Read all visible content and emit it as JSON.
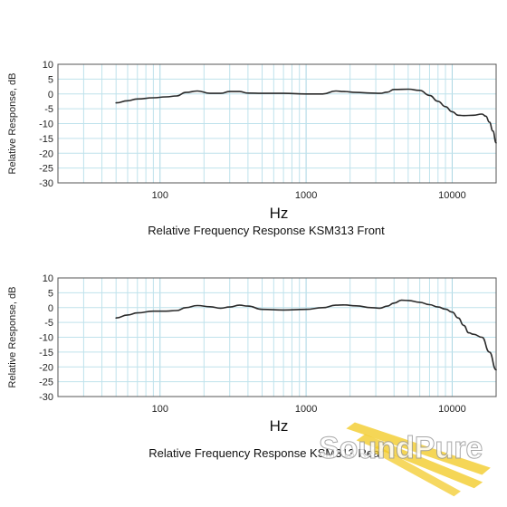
{
  "watermark": "SoundPure",
  "chart_data": [
    {
      "type": "line",
      "title": "Relative Frequency Response KSM313 Front",
      "xlabel": "Hz",
      "ylabel": "Relative Response, dB",
      "xscale": "log",
      "xlim": [
        20,
        20000
      ],
      "ylim": [
        -30,
        10
      ],
      "yticks": [
        10,
        5,
        0,
        -5,
        -10,
        -15,
        -20,
        -25,
        -30
      ],
      "xticks": [
        100,
        1000,
        10000
      ],
      "grid": true,
      "series": [
        {
          "x": [
            50,
            60,
            70,
            90,
            110,
            130,
            150,
            180,
            220,
            260,
            300,
            350,
            400,
            500,
            700,
            1000,
            1300,
            1600,
            1800,
            2200,
            2800,
            3200,
            3600,
            4000,
            5000,
            6000,
            7000,
            8000,
            9000,
            10000,
            11000,
            12000,
            14000,
            16000,
            17000,
            18000,
            19000,
            20000
          ],
          "y": [
            -3,
            -2.3,
            -1.7,
            -1.3,
            -1.0,
            -0.7,
            0.5,
            1.0,
            0.2,
            0.2,
            0.8,
            0.8,
            0.3,
            0.2,
            0.2,
            0,
            0,
            1.0,
            0.8,
            0.5,
            0.3,
            0.2,
            0.6,
            1.5,
            1.6,
            1.2,
            -0.5,
            -2.5,
            -4.3,
            -6.0,
            -7.2,
            -7.3,
            -7.2,
            -6.8,
            -7.5,
            -9.5,
            -12.5,
            -16.5
          ]
        }
      ]
    },
    {
      "type": "line",
      "title": "Relative Frequency Response KSM313 Rear",
      "xlabel": "Hz",
      "ylabel": "Relative Response, dB",
      "xscale": "log",
      "xlim": [
        20,
        20000
      ],
      "ylim": [
        -30,
        10
      ],
      "yticks": [
        10,
        5,
        0,
        -5,
        -10,
        -15,
        -20,
        -25,
        -30
      ],
      "xticks": [
        100,
        1000,
        10000
      ],
      "grid": true,
      "series": [
        {
          "x": [
            50,
            60,
            70,
            90,
            110,
            130,
            150,
            180,
            220,
            260,
            300,
            350,
            400,
            500,
            700,
            1000,
            1300,
            1600,
            1800,
            2200,
            2800,
            3200,
            3600,
            4000,
            4500,
            5000,
            6000,
            7000,
            8000,
            9000,
            10000,
            11000,
            12000,
            13000,
            14000,
            16000,
            18000,
            20000
          ],
          "y": [
            -3.5,
            -2.5,
            -1.8,
            -1.2,
            -1.2,
            -1.0,
            0,
            0.7,
            0.3,
            -0.2,
            0.2,
            0.8,
            0.5,
            -0.6,
            -0.8,
            -0.6,
            0,
            0.8,
            0.9,
            0.6,
            0,
            -0.2,
            0.5,
            1.5,
            2.5,
            2.4,
            1.8,
            1.0,
            0.2,
            -0.5,
            -1.5,
            -3.5,
            -6.0,
            -8.5,
            -9.0,
            -10.0,
            -15.0,
            -21.0
          ]
        }
      ]
    }
  ]
}
